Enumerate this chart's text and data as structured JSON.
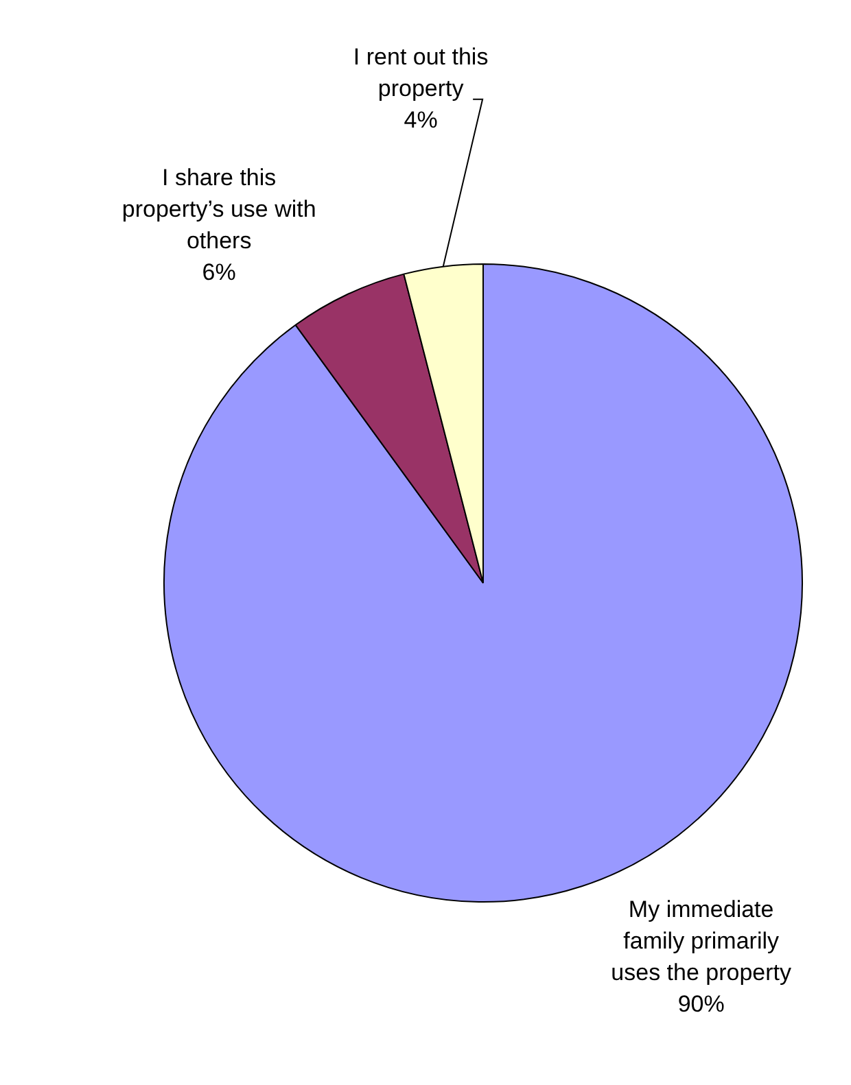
{
  "chart_data": {
    "type": "pie",
    "categories": [
      "My immediate family primarily uses the property",
      "I share this property’s use with others",
      "I rent out this property"
    ],
    "values": [
      90,
      6,
      4
    ],
    "colors": [
      "#9999ff",
      "#993366",
      "#ffffcc"
    ],
    "value_labels": [
      "90%",
      "6%",
      "4%"
    ],
    "legend": false
  }
}
